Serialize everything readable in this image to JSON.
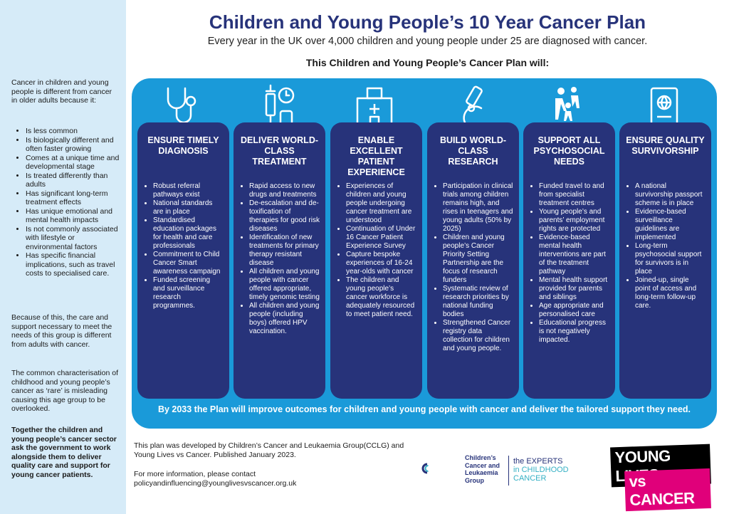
{
  "title": "Children and Young People’s 10 Year Cancer Plan",
  "subtitle": "Every year in the UK over 4,000 children and young people under 25 are diagnosed with cancer.",
  "plan_will": "This Children and Young People’s Cancer Plan will:",
  "sidebar": {
    "intro": "Cancer in children and young people is different from cancer in older adults because it:",
    "bullets": [
      "Is less common",
      "Is biologically different and often faster growing",
      "Comes at a unique time and developmental stage",
      "Is treated differently than adults",
      "Has significant long-term treatment effects",
      "Has unique emotional and mental health impacts",
      "Is not commonly associated with lifestyle or environmental factors",
      "Has specific financial implications, such as travel costs to specialised care."
    ],
    "para2": "Because of this, the care and support necessary to meet the needs of this group is different from adults with cancer.",
    "para3": "The common characterisation of childhood and young people’s cancer as ‘rare’ is misleading causing this age group to be overlooked.",
    "para4": "Together the children and young people’s cancer sector ask the government to work alongside them to deliver quality care and support for young cancer patients."
  },
  "columns": [
    {
      "heading": "ENSURE TIMELY DIAGNOSIS",
      "icon": "stethoscope-icon",
      "items": [
        "Robust referral pathways exist",
        "National standards are in place",
        "Standardised education packages for health and care professionals",
        "Commitment to Child Cancer Smart awareness campaign",
        "Funded screening and surveillance research programmes."
      ]
    },
    {
      "heading": "DELIVER WORLD-CLASS TREATMENT",
      "icon": "syringe-clock-icon",
      "items": [
        "Rapid access to new drugs and treatments",
        "De-escalation and de-toxification of therapies for good risk diseases",
        "Identification of new treatments for primary therapy resistant disease",
        "All children and young people with cancer offered appropriate, timely genomic testing",
        "All children and young people (including boys) offered HPV vaccination."
      ]
    },
    {
      "heading": "ENABLE EXCELLENT PATIENT EXPERIENCE",
      "icon": "hospital-icon",
      "items": [
        "Experiences of children and young people undergoing cancer treatment are understood",
        "Continuation of Under 16 Cancer Patient Experience Survey",
        "Capture bespoke experiences of 16-24 year-olds with cancer",
        "The children and young people’s cancer workforce is adequately resourced to meet patient need."
      ]
    },
    {
      "heading": "BUILD WORLD-CLASS RESEARCH",
      "icon": "microscope-icon",
      "items": [
        "Participation in clinical trials among children remains high, and rises in teenagers and young adults (50% by 2025)",
        "Children and young people’s Cancer Priority Setting Partnership are the focus of research funders",
        "Systematic review of research priorities by national funding bodies",
        "Strengthened Cancer registry data collection for children and young people."
      ]
    },
    {
      "heading": "SUPPORT ALL PSYCHOSOCIAL NEEDS",
      "icon": "family-icon",
      "items": [
        "Funded travel to and from specialist treatment centres",
        "Young people’s and parents’ employment rights are protected",
        "Evidence-based mental health interventions are part of the treatment pathway",
        "Mental health support provided for parents and siblings",
        "Age appropriate and personalised care",
        "Educational progress is not negatively impacted."
      ]
    },
    {
      "heading": "ENSURE QUALITY SURVIVORSHIP",
      "icon": "passport-icon",
      "items": [
        "A national survivorship passport scheme is in place",
        "Evidence-based surveillance guidelines are implemented",
        "Long-term psychosocial support for survivors is in place",
        "Joined-up, single point of access and long-term follow-up care."
      ]
    }
  ],
  "bottom_statement": "By 2033 the Plan will improve outcomes for children and young people with cancer and deliver the tailored support they need.",
  "credit": "This plan was developed by Children’s Cancer and Leukaemia Group(CCLG) and Young Lives vs Cancer. Published January 2023.",
  "contact_line": "For more information, please contact",
  "contact_email": "policyandinfluencing@younglivesvscancer.org.uk",
  "logos": {
    "cclg_name": [
      "Children’s",
      "Cancer and",
      "Leukaemia",
      "Group"
    ],
    "experts_line1": "the EXPERTS",
    "experts_line2": "in CHILDHOOD",
    "experts_line3": "CANCER",
    "ylvc_line1": "YOUNG LIVES",
    "ylvc_line2": "vs CANCER"
  },
  "colors": {
    "navy": "#27337a",
    "band_blue": "#1a9ad9",
    "sidebar_bg": "#d6ebf8",
    "teal": "#35b0c4",
    "magenta": "#e0007a"
  }
}
